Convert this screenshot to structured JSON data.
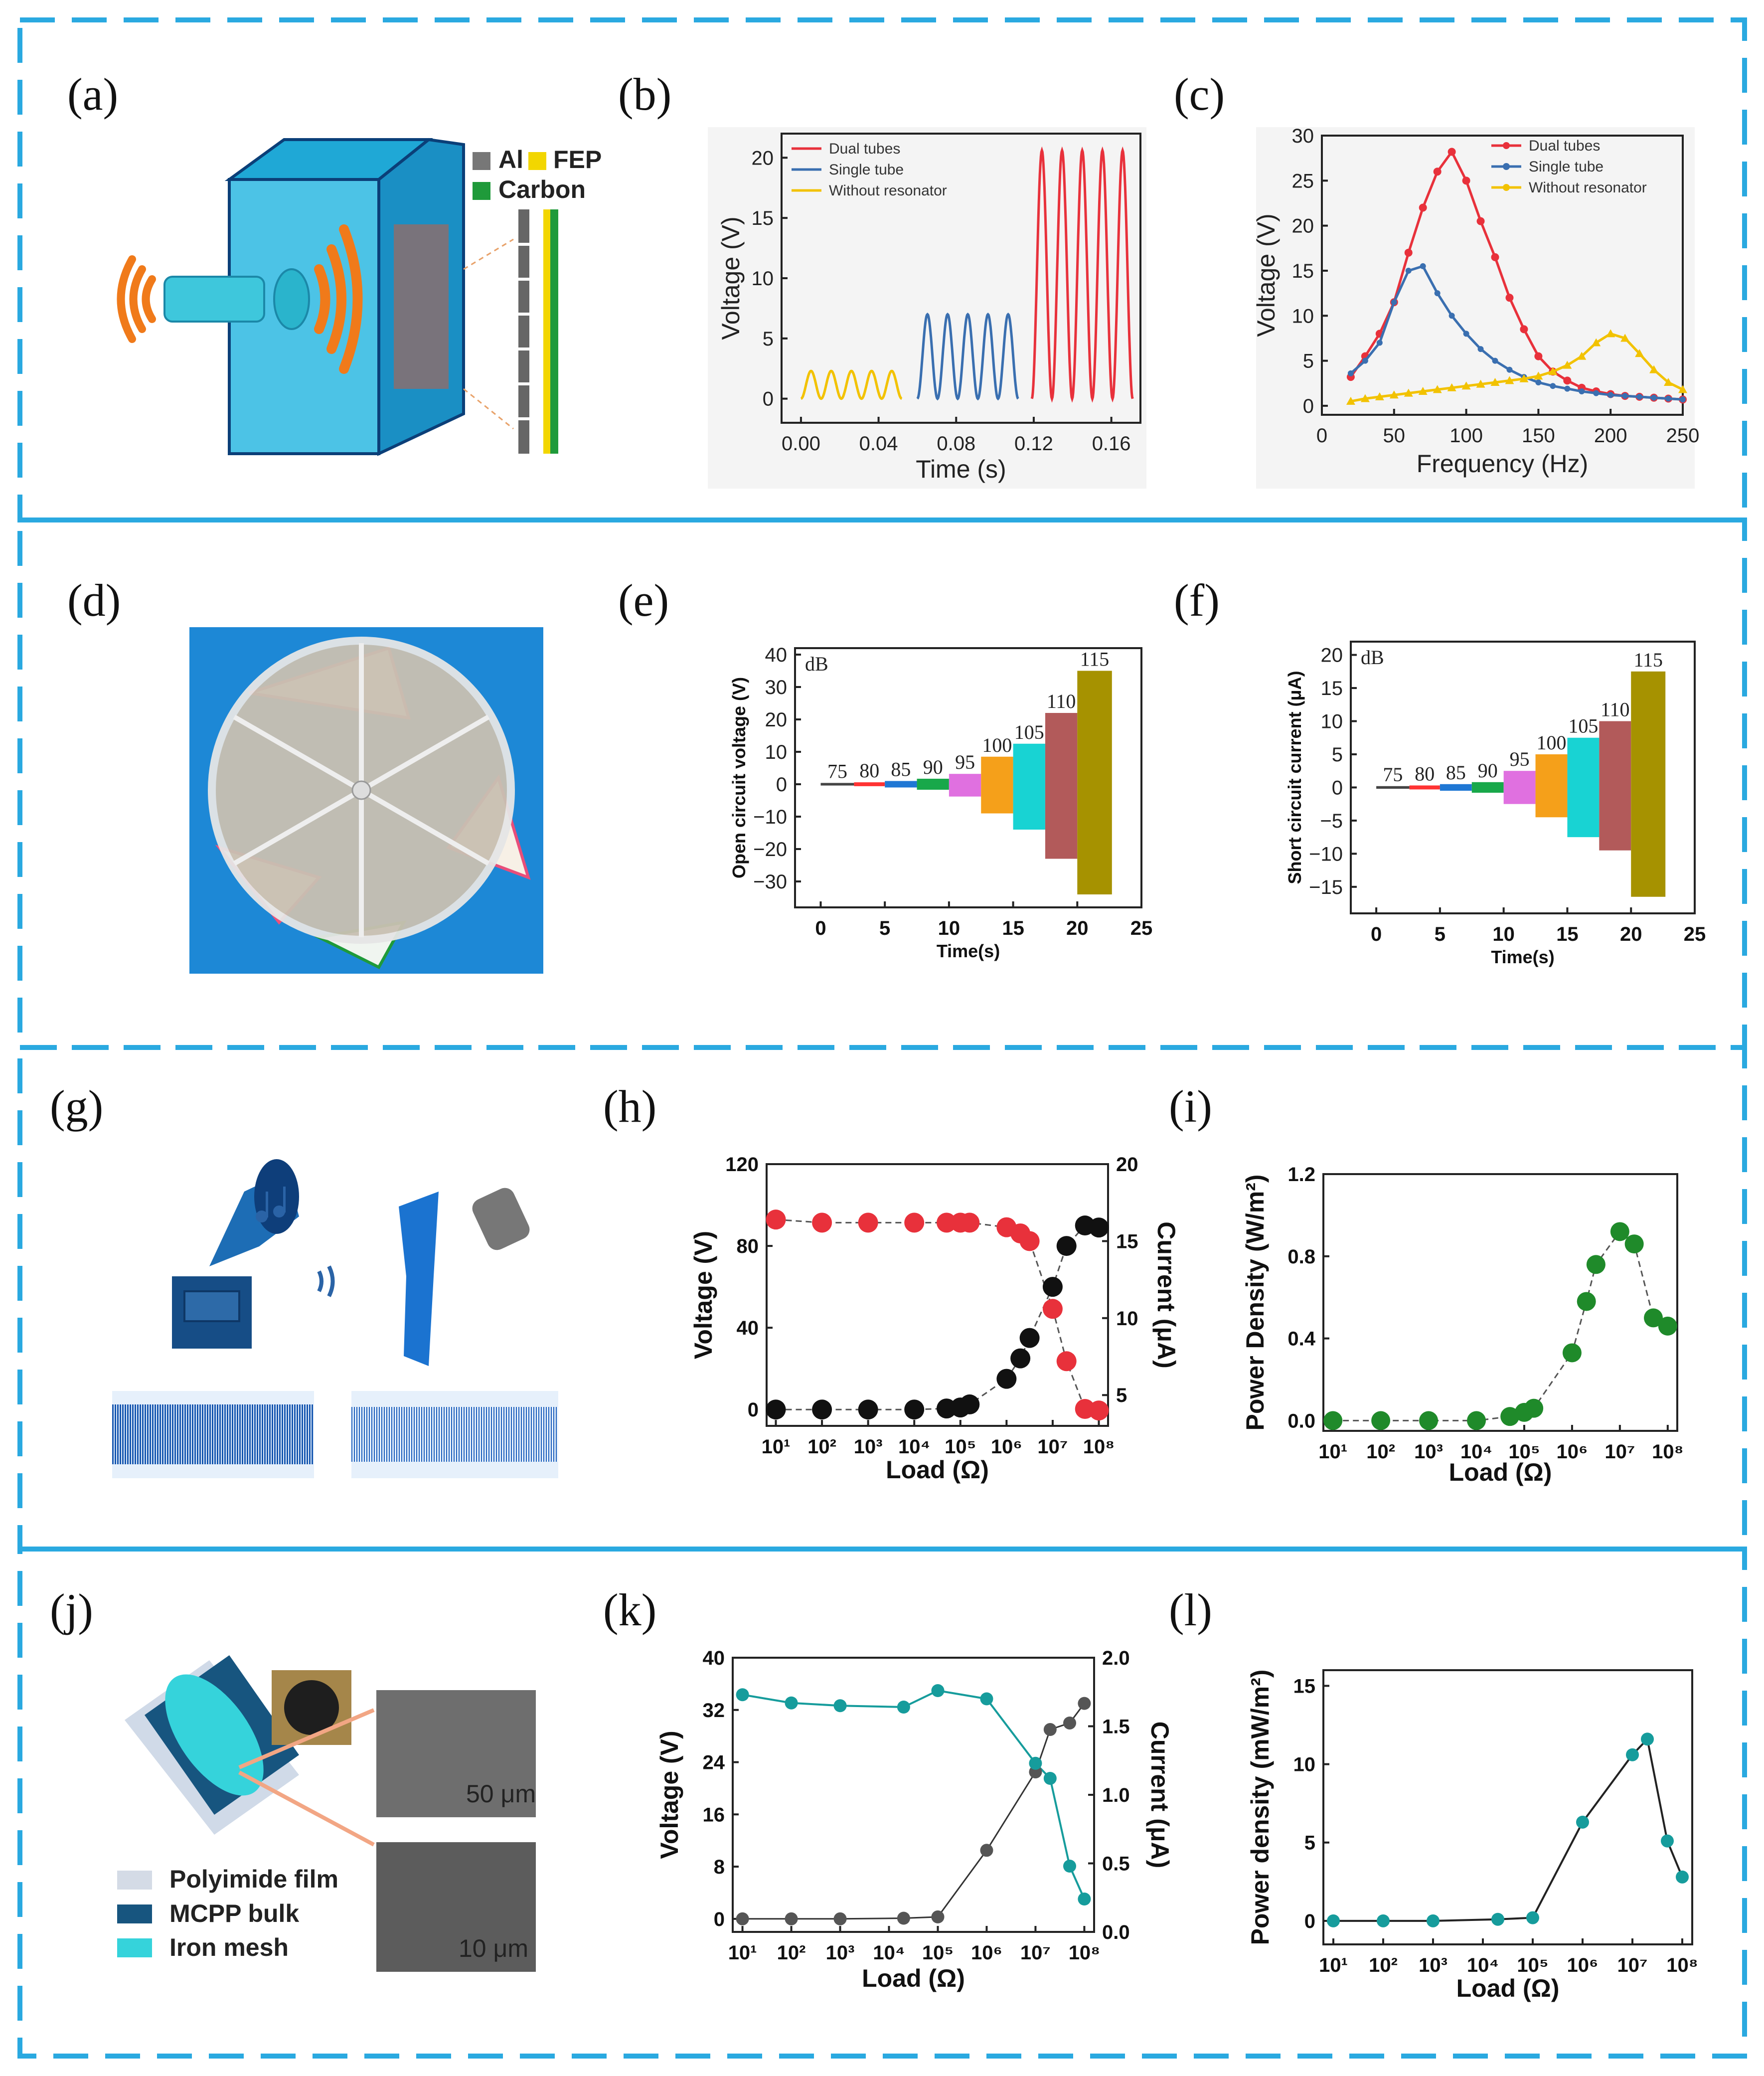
{
  "colors": {
    "frame": "#2aa9e0",
    "red": "#e8313b",
    "blue": "#3a6fb0",
    "yellow": "#f2c200",
    "teal": "#169c9c",
    "green": "#1f8a2a",
    "black": "#111111"
  },
  "panel_labels": [
    "(a)",
    "(b)",
    "(c)",
    "(d)",
    "(e)",
    "(f)",
    "(g)",
    "(h)",
    "(i)",
    "(j)",
    "(k)",
    "(l)"
  ],
  "panel_a": {
    "legend": [
      "Al",
      "FEP",
      "Carbon"
    ]
  },
  "panel_j": {
    "legend": [
      "Polyimide film",
      "MCPP bulk",
      "Iron mesh"
    ],
    "scale_bars": [
      "50 μm",
      "10 μm"
    ]
  },
  "chart_data": [
    {
      "id": "b",
      "type": "line",
      "xlabel": "Time (s)",
      "ylabel": "Voltage (V)",
      "xlim": [
        -0.01,
        0.175
      ],
      "ylim": [
        -2,
        22
      ],
      "xticks": [
        "0.00",
        "0.04",
        "0.08",
        "0.12",
        "0.16"
      ],
      "xtick_values": [
        0.0,
        0.04,
        0.08,
        0.12,
        0.16
      ],
      "yticks": [
        "0",
        "5",
        "10",
        "15",
        "20"
      ],
      "ytick_values": [
        0,
        5,
        10,
        15,
        20
      ],
      "legend_position": "top-left",
      "series": [
        {
          "name": "Dual tubes",
          "segment": [
            0.119,
            0.171
          ],
          "min": 0,
          "max": 20.6,
          "cycles": 5
        },
        {
          "name": "Single tube",
          "segment": [
            0.06,
            0.112
          ],
          "min": 0,
          "max": 7,
          "cycles": 5
        },
        {
          "name": "Without resonator",
          "segment": [
            0.0,
            0.052
          ],
          "min": 0,
          "max": 2.3,
          "cycles": 5
        }
      ]
    },
    {
      "id": "c",
      "type": "line",
      "xlabel": "Frequency (Hz)",
      "ylabel": "Voltage (V)",
      "xlim": [
        0,
        250
      ],
      "ylim": [
        -1,
        30
      ],
      "xticks": [
        "0",
        "50",
        "100",
        "150",
        "200",
        "250"
      ],
      "xtick_values": [
        0,
        50,
        100,
        150,
        200,
        250
      ],
      "yticks": [
        "0",
        "5",
        "10",
        "15",
        "20",
        "25",
        "30"
      ],
      "ytick_values": [
        0,
        5,
        10,
        15,
        20,
        25,
        30
      ],
      "legend_position": "top-right",
      "series": [
        {
          "name": "Dual tubes",
          "x": [
            20,
            30,
            40,
            50,
            60,
            70,
            80,
            90,
            100,
            110,
            120,
            130,
            140,
            150,
            160,
            170,
            180,
            190,
            200,
            210,
            220,
            230,
            240,
            250
          ],
          "values": [
            3.2,
            5.5,
            8,
            11.5,
            17,
            22,
            26,
            28.2,
            25,
            20.5,
            16.5,
            12,
            8.5,
            5.5,
            3.8,
            2.8,
            2,
            1.6,
            1.3,
            1.1,
            1.0,
            0.9,
            0.8,
            0.7
          ]
        },
        {
          "name": "Single tube",
          "x": [
            20,
            30,
            40,
            50,
            60,
            70,
            80,
            90,
            100,
            110,
            120,
            130,
            140,
            150,
            160,
            170,
            180,
            190,
            200,
            210,
            220,
            230,
            240,
            250
          ],
          "values": [
            3.6,
            5,
            7,
            11.5,
            15,
            15.5,
            12.5,
            10,
            8,
            6.3,
            5,
            4,
            3.2,
            2.6,
            2.2,
            1.9,
            1.6,
            1.4,
            1.2,
            1.1,
            1.0,
            0.9,
            0.8,
            0.7
          ]
        },
        {
          "name": "Without resonator",
          "x": [
            20,
            30,
            40,
            50,
            60,
            70,
            80,
            90,
            100,
            110,
            120,
            130,
            140,
            150,
            160,
            170,
            180,
            190,
            200,
            210,
            220,
            230,
            240,
            250
          ],
          "values": [
            0.5,
            0.8,
            1.0,
            1.2,
            1.4,
            1.6,
            1.8,
            2.0,
            2.2,
            2.4,
            2.6,
            2.8,
            3.0,
            3.3,
            3.8,
            4.5,
            5.5,
            7.0,
            8.0,
            7.5,
            5.8,
            4.0,
            2.6,
            1.8
          ]
        }
      ]
    },
    {
      "id": "e",
      "type": "bar",
      "xlabel": "Time(s)",
      "ylabel": "Open circuit voltage (V)",
      "unit_label": "dB",
      "xlim": [
        -2,
        25
      ],
      "ylim": [
        -38,
        42
      ],
      "xticks": [
        "0",
        "5",
        "10",
        "15",
        "20",
        "25"
      ],
      "xtick_values": [
        0,
        5,
        10,
        15,
        20,
        25
      ],
      "yticks": [
        "−30",
        "−20",
        "−10",
        "0",
        "10",
        "20",
        "30",
        "40"
      ],
      "ytick_values": [
        -30,
        -20,
        -10,
        0,
        10,
        20,
        30,
        40
      ],
      "categories": [
        "75",
        "80",
        "85",
        "90",
        "95",
        "100",
        "105",
        "110",
        "115"
      ],
      "segments": [
        [
          0,
          2.6
        ],
        [
          2.6,
          5
        ],
        [
          5,
          7.5
        ],
        [
          7.5,
          10
        ],
        [
          10,
          12.5
        ],
        [
          12.5,
          15
        ],
        [
          15,
          17.5
        ],
        [
          17.5,
          20
        ],
        [
          20,
          22.7
        ]
      ],
      "values": [
        0.4,
        0.6,
        1.0,
        1.7,
        3.2,
        8.5,
        12.5,
        22,
        35
      ],
      "neg_values": [
        -0.4,
        -0.6,
        -1.0,
        -1.7,
        -3.8,
        -9,
        -14,
        -23,
        -34
      ],
      "bar_colors": [
        "#444444",
        "#ff3333",
        "#1f77d4",
        "#18a84a",
        "#e070e0",
        "#f5a01a",
        "#18d3d3",
        "#b25a5a",
        "#a69200"
      ]
    },
    {
      "id": "f",
      "type": "bar",
      "xlabel": "Time(s)",
      "ylabel": "Short circuit current (μA)",
      "unit_label": "dB",
      "xlim": [
        -2,
        25
      ],
      "ylim": [
        -19,
        22
      ],
      "xticks": [
        "0",
        "5",
        "10",
        "15",
        "20",
        "25"
      ],
      "xtick_values": [
        0,
        5,
        10,
        15,
        20,
        25
      ],
      "yticks": [
        "−15",
        "−10",
        "−5",
        "0",
        "5",
        "10",
        "15",
        "20"
      ],
      "ytick_values": [
        -15,
        -10,
        -5,
        0,
        5,
        10,
        15,
        20
      ],
      "categories": [
        "75",
        "80",
        "85",
        "90",
        "95",
        "100",
        "105",
        "110",
        "115"
      ],
      "segments": [
        [
          0,
          2.6
        ],
        [
          2.6,
          5
        ],
        [
          5,
          7.5
        ],
        [
          7.5,
          10
        ],
        [
          10,
          12.5
        ],
        [
          12.5,
          15
        ],
        [
          15,
          17.5
        ],
        [
          17.5,
          20
        ],
        [
          20,
          22.7
        ]
      ],
      "values": [
        0.2,
        0.3,
        0.5,
        0.8,
        2.5,
        5,
        7.5,
        10,
        17.5
      ],
      "neg_values": [
        -0.2,
        -0.3,
        -0.5,
        -0.8,
        -2.5,
        -4.5,
        -7.5,
        -9.5,
        -16.5
      ],
      "bar_colors": [
        "#444444",
        "#ff3333",
        "#1f77d4",
        "#18a84a",
        "#e070e0",
        "#f5a01a",
        "#18d3d3",
        "#b25a5a",
        "#a69200"
      ]
    },
    {
      "id": "h",
      "type": "scatter",
      "xlabel": "Load (Ω)",
      "ylabel": "Voltage (V)",
      "y2label": "Current (μA)",
      "xlog_range": [
        0.8,
        8.2
      ],
      "ylim": [
        -8,
        120
      ],
      "y2lim": [
        3,
        20
      ],
      "xticks": [
        "10¹",
        "10²",
        "10³",
        "10⁴",
        "10⁵",
        "10⁶",
        "10⁷",
        "10⁸"
      ],
      "xtick_exponents": [
        1,
        2,
        3,
        4,
        5,
        6,
        7,
        8
      ],
      "yticks": [
        "0",
        "40",
        "80",
        "120"
      ],
      "ytick_values": [
        0,
        40,
        80,
        120
      ],
      "y2ticks": [
        "5",
        "10",
        "15",
        "20"
      ],
      "y2tick_values": [
        5,
        10,
        15,
        20
      ],
      "series": [
        {
          "name": "Voltage",
          "x_exp": [
            1,
            2,
            3,
            4,
            4.7,
            5,
            5.2,
            6,
            6.3,
            6.5,
            7,
            7.3,
            7.7,
            8
          ],
          "values": [
            0,
            0,
            0,
            0,
            0.5,
            1,
            2.5,
            15,
            25,
            35,
            60,
            80,
            90,
            89
          ]
        },
        {
          "name": "Current",
          "x_exp": [
            1,
            2,
            3,
            4,
            4.7,
            5,
            5.2,
            6,
            6.3,
            6.5,
            7,
            7.3,
            7.7,
            8
          ],
          "values": [
            16.4,
            16.2,
            16.2,
            16.2,
            16.2,
            16.2,
            16.2,
            15.9,
            15.5,
            15,
            10.6,
            7.2,
            4.1,
            4.0
          ]
        }
      ]
    },
    {
      "id": "i",
      "type": "scatter",
      "xlabel": "Load (Ω)",
      "ylabel": "Power Density (W/m²)",
      "xlog_range": [
        0.8,
        8.2
      ],
      "ylim": [
        -0.05,
        1.2
      ],
      "xticks": [
        "10¹",
        "10²",
        "10³",
        "10⁴",
        "10⁵",
        "10⁶",
        "10⁷",
        "10⁸"
      ],
      "xtick_exponents": [
        1,
        2,
        3,
        4,
        5,
        6,
        7,
        8
      ],
      "yticks": [
        "0.0",
        "0.4",
        "0.8",
        "1.2"
      ],
      "ytick_values": [
        0,
        0.4,
        0.8,
        1.2
      ],
      "series": [
        {
          "name": "Power Density",
          "x_exp": [
            1,
            2,
            3,
            4,
            4.7,
            5,
            5.2,
            6,
            6.3,
            6.5,
            7,
            7.3,
            7.7,
            8
          ],
          "values": [
            0,
            0,
            0,
            0,
            0.02,
            0.04,
            0.06,
            0.33,
            0.58,
            0.76,
            0.92,
            0.86,
            0.5,
            0.46
          ]
        }
      ]
    },
    {
      "id": "k",
      "type": "line",
      "xlabel": "Load (Ω)",
      "ylabel": "Voltage (V)",
      "y2label": "Current (μA)",
      "xlog_range": [
        0.8,
        8.2
      ],
      "ylim": [
        -2,
        40
      ],
      "y2lim": [
        0,
        2
      ],
      "xticks": [
        "10¹",
        "10²",
        "10³",
        "10⁴",
        "10⁵",
        "10⁶",
        "10⁷",
        "10⁸"
      ],
      "xtick_exponents": [
        1,
        2,
        3,
        4,
        5,
        6,
        7,
        8
      ],
      "yticks": [
        "0",
        "8",
        "16",
        "24",
        "32",
        "40"
      ],
      "ytick_values": [
        0,
        8,
        16,
        24,
        32,
        40
      ],
      "y2ticks": [
        "0.0",
        "0.5",
        "1.0",
        "1.5",
        "2.0"
      ],
      "y2tick_values": [
        0,
        0.5,
        1,
        1.5,
        2
      ],
      "series": [
        {
          "name": "Voltage",
          "x_exp": [
            1,
            2,
            3,
            4.3,
            5,
            6,
            7,
            7.3,
            7.7,
            8
          ],
          "values": [
            0,
            0,
            0,
            0.1,
            0.3,
            10.5,
            22.5,
            29,
            30,
            33
          ]
        },
        {
          "name": "Current",
          "x_exp": [
            1,
            2,
            3,
            4.3,
            5,
            6,
            7,
            7.3,
            7.7,
            8
          ],
          "values": [
            1.73,
            1.67,
            1.65,
            1.64,
            1.76,
            1.7,
            1.23,
            1.12,
            0.48,
            0.24
          ]
        }
      ]
    },
    {
      "id": "l",
      "type": "line",
      "xlabel": "Load (Ω)",
      "ylabel": "Power density (mW/m²)",
      "xlog_range": [
        0.8,
        8.2
      ],
      "ylim": [
        -1.5,
        16
      ],
      "xticks": [
        "10¹",
        "10²",
        "10³",
        "10⁴",
        "10⁵",
        "10⁶",
        "10⁷",
        "10⁸"
      ],
      "xtick_exponents": [
        1,
        2,
        3,
        4,
        5,
        6,
        7,
        8
      ],
      "yticks": [
        "0",
        "5",
        "10",
        "15"
      ],
      "ytick_values": [
        0,
        5,
        10,
        15
      ],
      "series": [
        {
          "name": "Power density",
          "x_exp": [
            1,
            2,
            3,
            4.3,
            5,
            6,
            7,
            7.3,
            7.7,
            8
          ],
          "values": [
            0,
            0,
            0,
            0.1,
            0.2,
            6.3,
            10.6,
            11.6,
            5.1,
            2.8
          ]
        }
      ]
    }
  ]
}
